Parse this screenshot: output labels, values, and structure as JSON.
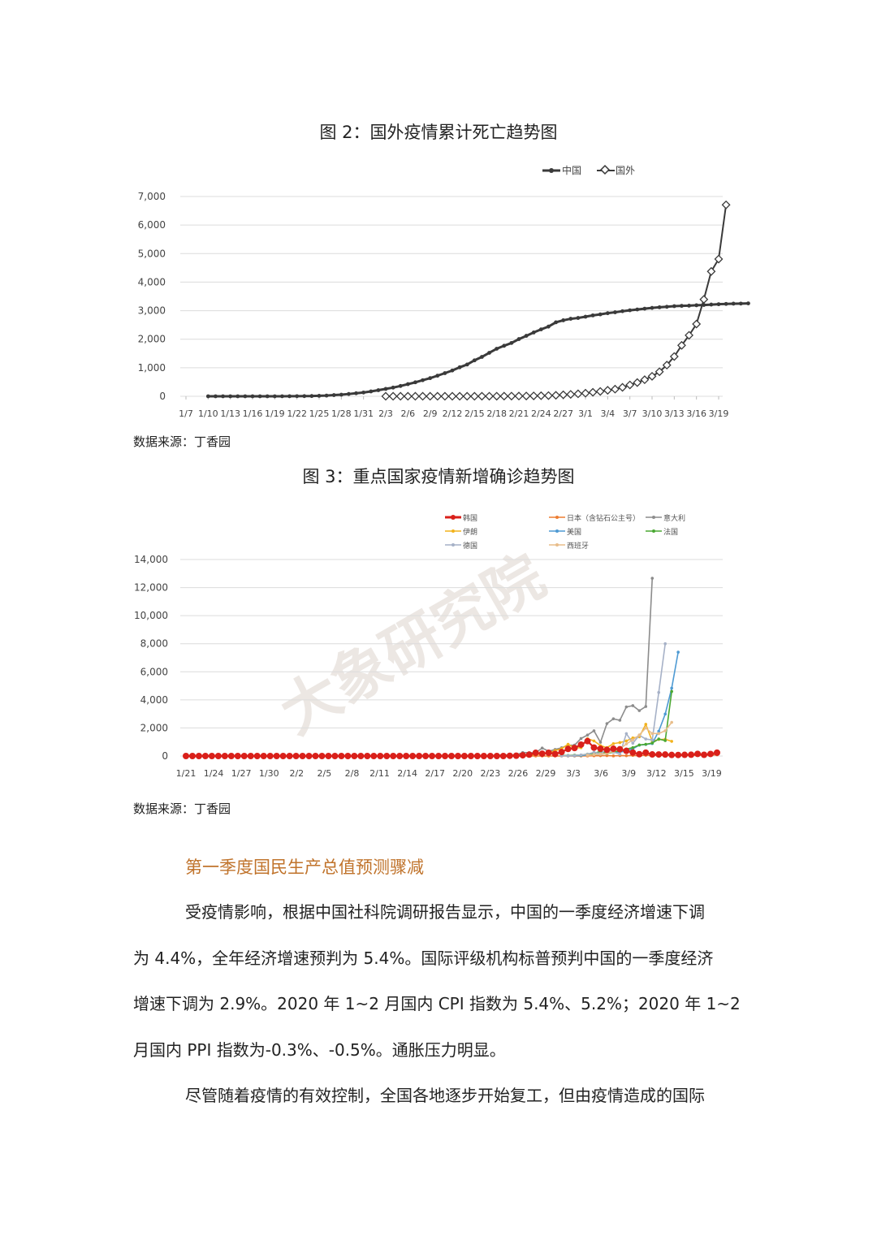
{
  "figure2": {
    "title": "图 2：国外疫情累计死亡趋势图",
    "source": "数据来源：丁香园",
    "chart_data": {
      "type": "line",
      "ylim": [
        0,
        7000
      ],
      "yticks": [
        "7,000",
        "6,000",
        "5,000",
        "4,000",
        "3,000",
        "2,000",
        "1,000",
        "0"
      ],
      "x_labels": [
        "1/7",
        "1/10",
        "1/13",
        "1/16",
        "1/19",
        "1/22",
        "1/25",
        "1/28",
        "1/31",
        "2/3",
        "2/6",
        "2/9",
        "2/12",
        "2/15",
        "2/18",
        "2/21",
        "2/24",
        "2/27",
        "3/1",
        "3/4",
        "3/7",
        "3/10",
        "3/13",
        "3/16",
        "3/19"
      ],
      "legend": [
        "中国",
        "国外"
      ],
      "legend_position": "top-right",
      "grid": true,
      "colors": {
        "china": "#3a3a3a",
        "foreign": "#3a3a3a"
      },
      "series": [
        {
          "name": "中国",
          "start_index": 3,
          "values": [
            0,
            0,
            0,
            0,
            0,
            0,
            0,
            0,
            0,
            0,
            1,
            2,
            4,
            6,
            9,
            17,
            25,
            41,
            56,
            80,
            106,
            132,
            170,
            213,
            259,
            304,
            361,
            425,
            490,
            563,
            636,
            722,
            811,
            904,
            1016,
            1113,
            1259,
            1380,
            1523,
            1665,
            1770,
            1868,
            2004,
            2118,
            2236,
            2345,
            2442,
            2592,
            2663,
            2715,
            2744,
            2788,
            2835,
            2870,
            2912,
            2943,
            2981,
            3013,
            3042,
            3070,
            3097,
            3119,
            3136,
            3158,
            3169,
            3176,
            3189,
            3199,
            3213,
            3226,
            3237,
            3245,
            3248,
            3255
          ]
        },
        {
          "name": "国外",
          "start_index": 27,
          "values": [
            1,
            1,
            1,
            1,
            1,
            1,
            1,
            1,
            1,
            1,
            1,
            1,
            1,
            2,
            3,
            3,
            5,
            6,
            8,
            10,
            13,
            20,
            24,
            34,
            52,
            67,
            86,
            107,
            140,
            170,
            210,
            250,
            313,
            398,
            480,
            580,
            700,
            860,
            1093,
            1394,
            1784,
            2137,
            2531,
            3395,
            4375,
            4808,
            6708
          ]
        }
      ]
    }
  },
  "figure3": {
    "title": "图 3：重点国家疫情新增确诊趋势图",
    "source": "数据来源：丁香园",
    "watermark": "大象研究院",
    "chart_data": {
      "type": "line",
      "ylim": [
        0,
        14000
      ],
      "yticks": [
        "14,000",
        "12,000",
        "10,000",
        "8,000",
        "6,000",
        "4,000",
        "2,000",
        "0"
      ],
      "x_labels": [
        "1/21",
        "1/24",
        "1/27",
        "1/30",
        "2/2",
        "2/5",
        "2/8",
        "2/11",
        "2/14",
        "2/17",
        "2/20",
        "2/23",
        "2/26",
        "2/29",
        "3/3",
        "3/6",
        "3/9",
        "3/12",
        "3/15",
        "3/19"
      ],
      "legend_position": "top",
      "grid": true,
      "series": [
        {
          "name": "韩国",
          "color": "#d9201a",
          "start_index": 0,
          "values": [
            0,
            0,
            0,
            0,
            0,
            0,
            0,
            0,
            0,
            0,
            0,
            0,
            0,
            0,
            0,
            0,
            0,
            0,
            0,
            0,
            0,
            0,
            0,
            0,
            0,
            0,
            0,
            0,
            0,
            0,
            0,
            0,
            0,
            0,
            0,
            0,
            0,
            0,
            0,
            0,
            0,
            0,
            0,
            0,
            0,
            0,
            0,
            0,
            0,
            0,
            16,
            22,
            53,
            100,
            229,
            169,
            231,
            144,
            284,
            505,
            571,
            813,
            1062,
            600,
            516,
            438,
            518,
            483,
            367,
            248,
            131,
            242,
            114,
            110,
            107,
            76,
            74,
            84,
            93,
            152,
            87,
            147,
            239
          ]
        },
        {
          "name": "日本（含钻石公主号）",
          "color": "#ed7d31",
          "start_index": 0,
          "values": [
            0,
            0,
            0,
            0,
            0,
            0,
            0,
            0,
            0,
            0,
            0,
            0,
            0,
            0,
            0,
            0,
            0,
            0,
            0,
            0,
            0,
            0,
            0,
            0,
            0,
            0,
            0,
            0,
            0,
            0,
            0,
            0,
            0,
            0,
            0,
            0,
            0,
            0,
            0,
            0,
            0,
            0,
            0,
            0,
            0,
            0,
            0,
            0,
            0,
            0,
            0,
            0,
            0,
            0,
            0,
            0,
            0,
            0,
            0,
            0,
            0,
            0,
            10,
            14,
            20,
            30,
            10,
            30,
            20,
            40,
            30,
            50,
            50,
            40,
            50,
            60,
            40,
            50,
            60,
            40,
            70,
            60,
            90
          ]
        },
        {
          "name": "意大利",
          "color": "#8c8c8c",
          "start_index": 47,
          "values": [
            0,
            62,
            77,
            93,
            78,
            250,
            238,
            240,
            566,
            342,
            466,
            587,
            769,
            778,
            1247,
            1492,
            1797,
            977,
            2313,
            2651,
            2547,
            3497,
            3590,
            3233,
            3526,
            12665
          ]
        },
        {
          "name": "伊朗",
          "color": "#f2b21c",
          "start_index": 49,
          "values": [
            0,
            13,
            10,
            34,
            44,
            106,
            143,
            205,
            385,
            523,
            835,
            586,
            591,
            1234,
            1076,
            743,
            595,
            881,
            958,
            1075,
            1289,
            1365,
            2262,
            1053,
            1178,
            1192,
            1046
          ]
        },
        {
          "name": "美国",
          "color": "#4e9ad3",
          "start_index": 58,
          "values": [
            20,
            14,
            22,
            34,
            74,
            105,
            121,
            200,
            271,
            287,
            351,
            511,
            777,
            823,
            887,
            1766,
            2988,
            4835,
            7400
          ]
        },
        {
          "name": "法国",
          "color": "#4aa832",
          "start_index": 58,
          "values": [
            30,
            43,
            61,
            73,
            138,
            190,
            336,
            177,
            286,
            372,
            497,
            595,
            785,
            838,
            924,
            1210,
            1097,
            4600
          ]
        },
        {
          "name": "德国",
          "color": "#a6b1c7",
          "start_index": 58,
          "values": [
            12,
            28,
            44,
            79,
            130,
            271,
            170,
            451,
            281,
            136,
            1597,
            910,
            1477,
            1210,
            1144,
            4528,
            8000
          ]
        },
        {
          "name": "西班牙",
          "color": "#e8bd8a",
          "start_index": 62,
          "values": [
            50,
            100,
            130,
            190,
            330,
            500,
            860,
            1150,
            1500,
            2000,
            1600,
            1600,
            1800,
            2400
          ]
        }
      ]
    }
  },
  "section": {
    "heading": "第一季度国民生产总值预测骤减",
    "paragraph1_lines": [
      "受疫情影响，根据中国社科院调研报告显示，中国的一季度经济增速下调",
      "为 4.4%，全年经济增速预判为 5.4%。国际评级机构标普预判中国的一季度经济",
      "增速下调为 2.9%。2020 年 1~2 月国内 CPI 指数为 5.4%、5.2%；2020 年 1~2",
      "月国内 PPI 指数为-0.3%、-0.5%。通胀压力明显。"
    ],
    "paragraph2_lines": [
      "尽管随着疫情的有效控制，全国各地逐步开始复工，但由疫情造成的国际"
    ]
  }
}
